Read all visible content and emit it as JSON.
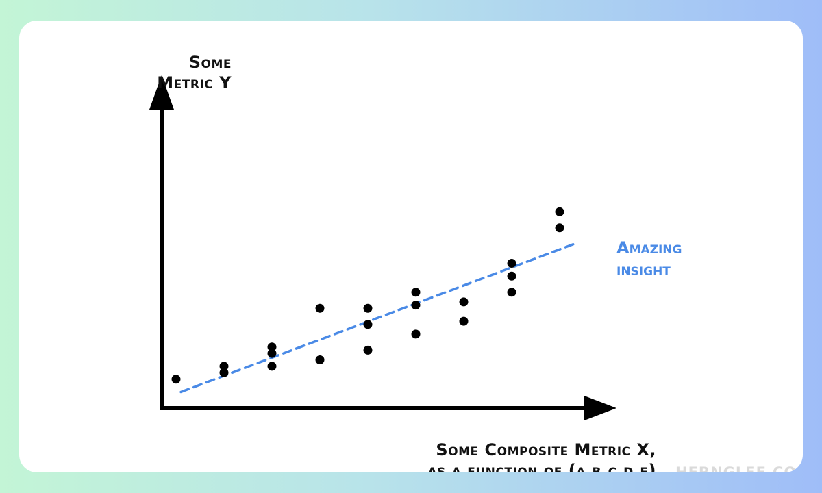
{
  "chart_data": {
    "type": "scatter",
    "ylabel_lines": [
      "Some",
      "Metric Y"
    ],
    "xlabel_lines": [
      "Some Composite Metric X,",
      "as a function of (a,b,c,d,e)"
    ],
    "annotation_lines": [
      "Amazing",
      "insight"
    ],
    "watermark": "HERNGLEE.COM",
    "colors": {
      "points": "#000000",
      "axes": "#000000",
      "trendline": "#4a8ae6",
      "annotation": "#4a8ae6"
    },
    "grid": false,
    "xlim": [
      0,
      9.2
    ],
    "ylim": [
      0,
      10
    ],
    "points": [
      {
        "x": 0.3,
        "y": 0.9
      },
      {
        "x": 1.3,
        "y": 1.1
      },
      {
        "x": 1.3,
        "y": 1.3
      },
      {
        "x": 2.3,
        "y": 1.3
      },
      {
        "x": 2.3,
        "y": 1.7
      },
      {
        "x": 2.3,
        "y": 1.9
      },
      {
        "x": 3.3,
        "y": 1.5
      },
      {
        "x": 3.3,
        "y": 3.1
      },
      {
        "x": 4.3,
        "y": 1.8
      },
      {
        "x": 4.3,
        "y": 2.6
      },
      {
        "x": 4.3,
        "y": 3.1
      },
      {
        "x": 5.3,
        "y": 2.3
      },
      {
        "x": 5.3,
        "y": 3.2
      },
      {
        "x": 5.3,
        "y": 3.6
      },
      {
        "x": 6.3,
        "y": 2.7
      },
      {
        "x": 6.3,
        "y": 3.3
      },
      {
        "x": 7.3,
        "y": 3.6
      },
      {
        "x": 7.3,
        "y": 4.1
      },
      {
        "x": 7.3,
        "y": 4.5
      },
      {
        "x": 8.3,
        "y": 5.6
      },
      {
        "x": 8.3,
        "y": 6.1
      }
    ],
    "trendline": {
      "x": [
        0.4,
        8.6
      ],
      "y": [
        0.5,
        5.1
      ]
    }
  }
}
